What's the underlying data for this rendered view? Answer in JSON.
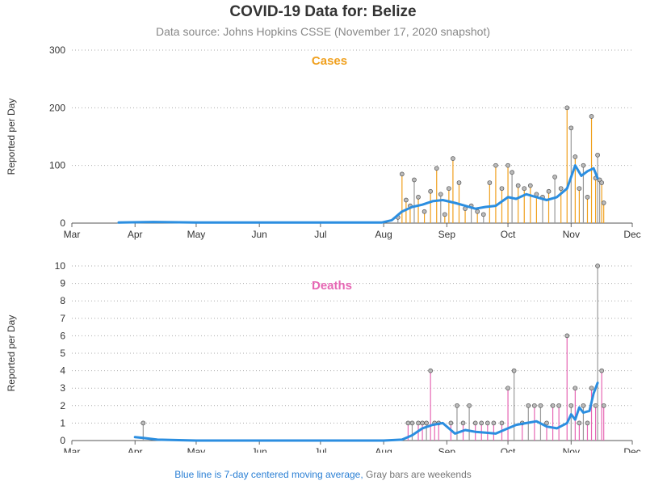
{
  "title": "COVID-19 Data for: Belize",
  "subtitle": "Data source: Johns Hopkins CSSE (November 17, 2020 snapshot)",
  "footnote": {
    "blue_part": "Blue line is 7-day centered moving average,",
    "gray_part": "Gray bars are weekends"
  },
  "colors": {
    "cases": "#f0a01e",
    "deaths": "#e667b4",
    "moving_average": "#2b8ee0",
    "weekend": "#999999",
    "grid": "#aaaaaa",
    "marker_fill": "#bbbbbb"
  },
  "chart_data": [
    {
      "type": "bar",
      "title": "Cases",
      "ylabel": "Reported per Day",
      "xlabel": "",
      "ylim": [
        0,
        300
      ],
      "yticks": [
        0,
        100,
        200,
        300
      ],
      "xlim": [
        "2020-03-01",
        "2020-12-01"
      ],
      "xtick_labels": [
        "Mar",
        "Apr",
        "May",
        "Jun",
        "Jul",
        "Aug",
        "Sep",
        "Oct",
        "Nov",
        "Dec"
      ],
      "grid": "horizontal dotted",
      "series": [
        {
          "name": "Cases",
          "x": [
            "2020-08-08",
            "2020-08-10",
            "2020-08-12",
            "2020-08-14",
            "2020-08-16",
            "2020-08-18",
            "2020-08-21",
            "2020-08-24",
            "2020-08-27",
            "2020-08-29",
            "2020-08-31",
            "2020-09-02",
            "2020-09-04",
            "2020-09-07",
            "2020-09-10",
            "2020-09-13",
            "2020-09-16",
            "2020-09-19",
            "2020-09-22",
            "2020-09-25",
            "2020-09-28",
            "2020-10-01",
            "2020-10-03",
            "2020-10-06",
            "2020-10-09",
            "2020-10-12",
            "2020-10-15",
            "2020-10-18",
            "2020-10-21",
            "2020-10-24",
            "2020-10-27",
            "2020-10-30",
            "2020-11-01",
            "2020-11-03",
            "2020-11-05",
            "2020-11-07",
            "2020-11-09",
            "2020-11-11",
            "2020-11-13",
            "2020-11-14",
            "2020-11-15",
            "2020-11-16",
            "2020-11-17"
          ],
          "values": [
            10,
            85,
            40,
            30,
            75,
            45,
            20,
            55,
            95,
            50,
            15,
            60,
            112,
            70,
            25,
            30,
            20,
            15,
            70,
            100,
            60,
            100,
            88,
            65,
            60,
            65,
            50,
            45,
            55,
            80,
            60,
            200,
            165,
            115,
            60,
            100,
            45,
            185,
            78,
            118,
            75,
            70,
            35
          ]
        },
        {
          "name": "7-day moving average",
          "x": [
            "2020-03-24",
            "2020-04-10",
            "2020-05-01",
            "2020-06-01",
            "2020-07-01",
            "2020-07-31",
            "2020-08-05",
            "2020-08-10",
            "2020-08-15",
            "2020-08-20",
            "2020-08-25",
            "2020-08-30",
            "2020-09-05",
            "2020-09-10",
            "2020-09-15",
            "2020-09-20",
            "2020-09-25",
            "2020-10-01",
            "2020-10-05",
            "2020-10-10",
            "2020-10-15",
            "2020-10-20",
            "2020-10-25",
            "2020-10-30",
            "2020-11-01",
            "2020-11-03",
            "2020-11-06",
            "2020-11-09",
            "2020-11-12",
            "2020-11-14"
          ],
          "values": [
            1,
            2,
            1,
            1,
            1,
            1,
            5,
            20,
            28,
            32,
            38,
            40,
            35,
            30,
            25,
            28,
            30,
            45,
            42,
            50,
            45,
            40,
            45,
            60,
            80,
            100,
            82,
            90,
            95,
            78
          ]
        }
      ]
    },
    {
      "type": "bar",
      "title": "Deaths",
      "ylabel": "Reported per Day",
      "xlabel": "",
      "ylim": [
        0,
        10
      ],
      "yticks": [
        0,
        1,
        2,
        3,
        4,
        5,
        6,
        7,
        8,
        9,
        10
      ],
      "xlim": [
        "2020-03-01",
        "2020-12-01"
      ],
      "xtick_labels": [
        "Mar",
        "Apr",
        "May",
        "Jun",
        "Jul",
        "Aug",
        "Sep",
        "Oct",
        "Nov",
        "Dec"
      ],
      "grid": "horizontal dotted",
      "series": [
        {
          "name": "Deaths",
          "x": [
            "2020-04-05",
            "2020-08-13",
            "2020-08-15",
            "2020-08-18",
            "2020-08-20",
            "2020-08-22",
            "2020-08-24",
            "2020-08-26",
            "2020-08-28",
            "2020-09-03",
            "2020-09-06",
            "2020-09-09",
            "2020-09-12",
            "2020-09-15",
            "2020-09-18",
            "2020-09-21",
            "2020-09-24",
            "2020-09-28",
            "2020-10-01",
            "2020-10-04",
            "2020-10-08",
            "2020-10-11",
            "2020-10-14",
            "2020-10-17",
            "2020-10-20",
            "2020-10-23",
            "2020-10-26",
            "2020-10-30",
            "2020-11-01",
            "2020-11-03",
            "2020-11-05",
            "2020-11-07",
            "2020-11-09",
            "2020-11-11",
            "2020-11-13",
            "2020-11-14",
            "2020-11-16",
            "2020-11-17"
          ],
          "values": [
            1,
            1,
            1,
            1,
            1,
            1,
            4,
            1,
            1,
            1,
            2,
            1,
            2,
            1,
            1,
            1,
            1,
            1,
            3,
            4,
            1,
            2,
            2,
            2,
            1,
            2,
            2,
            6,
            2,
            3,
            1,
            2,
            1,
            3,
            2,
            10,
            4,
            2
          ]
        },
        {
          "name": "7-day moving average",
          "x": [
            "2020-04-01",
            "2020-04-05",
            "2020-04-12",
            "2020-05-01",
            "2020-06-01",
            "2020-07-01",
            "2020-08-01",
            "2020-08-10",
            "2020-08-15",
            "2020-08-20",
            "2020-08-25",
            "2020-08-30",
            "2020-09-05",
            "2020-09-10",
            "2020-09-15",
            "2020-09-20",
            "2020-09-25",
            "2020-10-01",
            "2020-10-05",
            "2020-10-10",
            "2020-10-15",
            "2020-10-20",
            "2020-10-25",
            "2020-10-30",
            "2020-11-01",
            "2020-11-03",
            "2020-11-05",
            "2020-11-07",
            "2020-11-10",
            "2020-11-12",
            "2020-11-14"
          ],
          "values": [
            0.2,
            0.15,
            0.05,
            0,
            0,
            0,
            0,
            0.05,
            0.3,
            0.7,
            0.9,
            1.0,
            0.4,
            0.6,
            0.5,
            0.45,
            0.4,
            0.7,
            0.9,
            1.0,
            1.1,
            0.8,
            0.7,
            1.0,
            1.5,
            1.2,
            1.9,
            1.6,
            1.7,
            2.7,
            3.3
          ]
        }
      ]
    }
  ]
}
